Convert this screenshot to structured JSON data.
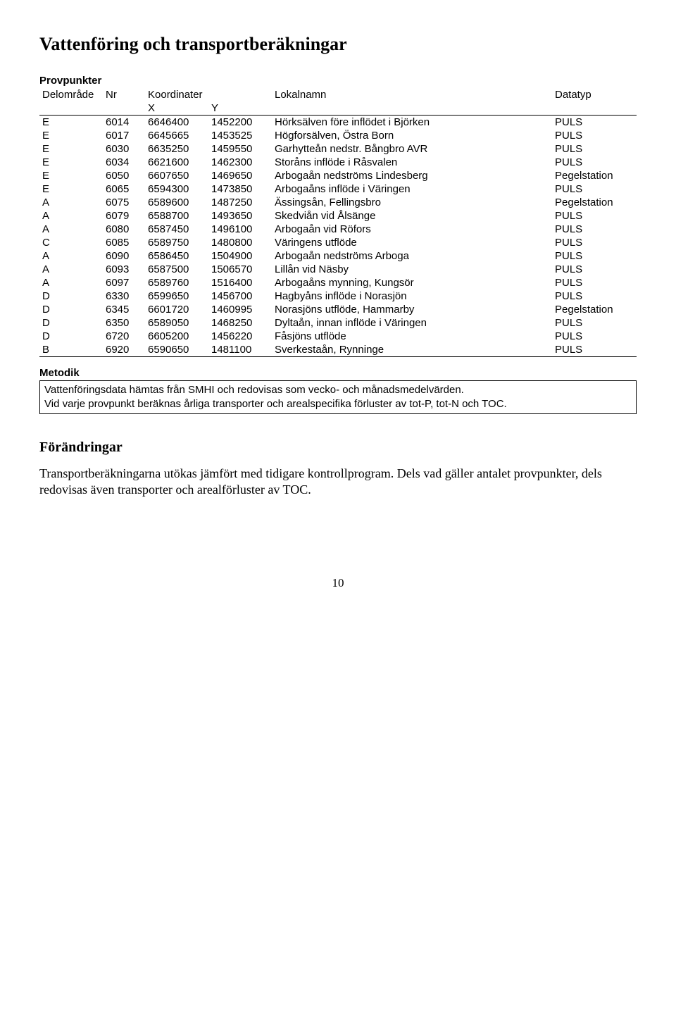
{
  "title": "Vattenföring och transportberäkningar",
  "table": {
    "caption": "Provpunkter",
    "headers": {
      "delomrade": "Delområde",
      "nr": "Nr",
      "koordinater": "Koordinater",
      "x": "X",
      "y": "Y",
      "lokalnamn": "Lokalnamn",
      "datatyp": "Datatyp"
    },
    "rows": [
      {
        "d": "E",
        "nr": "6014",
        "x": "6646400",
        "y": "1452200",
        "name": "Hörksälven före inflödet i Björken",
        "type": "PULS"
      },
      {
        "d": "E",
        "nr": "6017",
        "x": "6645665",
        "y": "1453525",
        "name": "Högforsälven, Östra Born",
        "type": "PULS"
      },
      {
        "d": "E",
        "nr": "6030",
        "x": "6635250",
        "y": "1459550",
        "name": "Garhytteån nedstr. Bångbro AVR",
        "type": "PULS"
      },
      {
        "d": "E",
        "nr": "6034",
        "x": "6621600",
        "y": "1462300",
        "name": "Storåns inflöde i Råsvalen",
        "type": "PULS"
      },
      {
        "d": "E",
        "nr": "6050",
        "x": "6607650",
        "y": "1469650",
        "name": "Arbogaån nedströms Lindesberg",
        "type": "Pegelstation"
      },
      {
        "d": "E",
        "nr": "6065",
        "x": "6594300",
        "y": "1473850",
        "name": "Arbogaåns inflöde i Väringen",
        "type": "PULS"
      },
      {
        "d": "A",
        "nr": "6075",
        "x": "6589600",
        "y": "1487250",
        "name": "Ässingsån, Fellingsbro",
        "type": "Pegelstation"
      },
      {
        "d": "A",
        "nr": "6079",
        "x": "6588700",
        "y": "1493650",
        "name": "Skedviån vid Ålsänge",
        "type": "PULS"
      },
      {
        "d": "A",
        "nr": "6080",
        "x": "6587450",
        "y": "1496100",
        "name": "Arbogaån vid Röfors",
        "type": "PULS"
      },
      {
        "d": "C",
        "nr": "6085",
        "x": "6589750",
        "y": "1480800",
        "name": "Väringens utflöde",
        "type": "PULS"
      },
      {
        "d": "A",
        "nr": "6090",
        "x": "6586450",
        "y": "1504900",
        "name": "Arbogaån nedströms Arboga",
        "type": "PULS"
      },
      {
        "d": "A",
        "nr": "6093",
        "x": "6587500",
        "y": "1506570",
        "name": "Lillån vid Näsby",
        "type": "PULS"
      },
      {
        "d": "A",
        "nr": "6097",
        "x": "6589760",
        "y": "1516400",
        "name": "Arbogaåns mynning, Kungsör",
        "type": "PULS"
      },
      {
        "d": "D",
        "nr": "6330",
        "x": "6599650",
        "y": "1456700",
        "name": "Hagbyåns inflöde i Norasjön",
        "type": "PULS"
      },
      {
        "d": "D",
        "nr": "6345",
        "x": "6601720",
        "y": "1460995",
        "name": "Norasjöns utflöde, Hammarby",
        "type": "Pegelstation"
      },
      {
        "d": "D",
        "nr": "6350",
        "x": "6589050",
        "y": "1468250",
        "name": "Dyltaån, innan inflöde i Väringen",
        "type": "PULS"
      },
      {
        "d": "D",
        "nr": "6720",
        "x": "6605200",
        "y": "1456220",
        "name": "Fåsjöns utflöde",
        "type": "PULS"
      },
      {
        "d": "B",
        "nr": "6920",
        "x": "6590650",
        "y": "1481100",
        "name": "Sverkestaån, Rynninge",
        "type": "PULS"
      }
    ]
  },
  "metodik": {
    "label": "Metodik",
    "line1": "Vattenföringsdata hämtas från SMHI och redovisas som vecko- och månadsmedelvärden.",
    "line2": "Vid varje provpunkt beräknas årliga transporter och arealspecifika förluster av tot-P, tot-N och TOC."
  },
  "changes": {
    "heading": "Förändringar",
    "text": "Transportberäkningarna utökas jämfört med tidigare kontrollprogram. Dels vad gäller antalet provpunkter, dels redovisas även transporter och arealförluster av TOC."
  },
  "pagenum": "10"
}
